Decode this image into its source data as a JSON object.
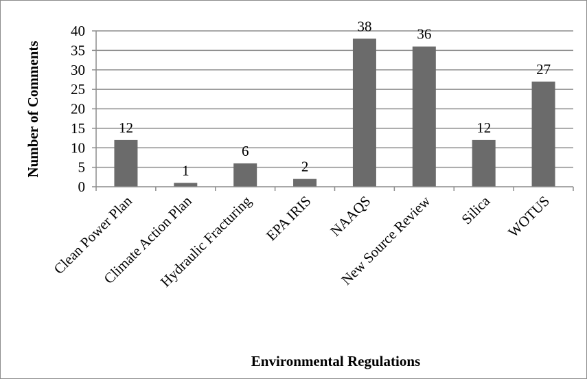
{
  "chart_data": {
    "type": "bar",
    "categories": [
      "Clean Power Plan",
      "Climate Action Plan",
      "Hydraulic Fracturing",
      "EPA IRIS",
      "NAAQS",
      "New Source Review",
      "Silica",
      "WOTUS"
    ],
    "values": [
      12,
      1,
      6,
      2,
      38,
      36,
      12,
      27
    ],
    "data_labels": [
      "12",
      "1",
      "6",
      "2",
      "38",
      "36",
      "12",
      "27"
    ],
    "y_ticks": [
      "0",
      "5",
      "10",
      "15",
      "20",
      "25",
      "30",
      "35",
      "40"
    ],
    "ylim": [
      0,
      40
    ],
    "grid": true,
    "legend": "none",
    "xlabel": "Environmental Regulations",
    "ylabel": "Number of Comments",
    "bar_color": "#6b6b6b",
    "grid_color": "#8c8c8c"
  }
}
